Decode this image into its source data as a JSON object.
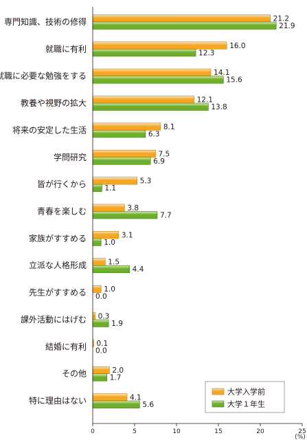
{
  "chart_data": {
    "type": "bar",
    "orientation": "horizontal",
    "categories": [
      "専門知識、技術の修得",
      "就職に有利",
      "就職に必要な勉強をする",
      "教養や視野の拡大",
      "将来の安定した生活",
      "学問研究",
      "皆が行くから",
      "青春を楽しむ",
      "家族がすすめる",
      "立派な人格形成",
      "先生がすすめる",
      "課外活動にはげむ",
      "結婚に有利",
      "その他",
      "特に理由はない"
    ],
    "series": [
      {
        "name": "大学入学前",
        "color": "#f5a623",
        "values": [
          21.2,
          16.0,
          14.1,
          12.1,
          8.1,
          7.5,
          5.3,
          3.8,
          3.1,
          1.5,
          1.0,
          0.3,
          0.1,
          2.0,
          4.1
        ],
        "labels": [
          "21.2",
          "16.0",
          "14.1",
          "12.1",
          "8.1",
          "7.5",
          "5.3",
          "3.8",
          "3.1",
          "1.5",
          "1.0",
          "0.3",
          "0.1",
          "2.0",
          "4.1"
        ]
      },
      {
        "name": "大学１年生",
        "color": "#6fae2c",
        "values": [
          21.9,
          12.3,
          15.6,
          13.8,
          6.3,
          6.9,
          1.1,
          7.7,
          1.0,
          4.4,
          0.0,
          1.9,
          0.0,
          1.7,
          5.6
        ],
        "labels": [
          "21.9",
          "12.3",
          "15.6",
          "13.8",
          "6.3",
          "6.9",
          "1.1",
          "7.7",
          "1.0",
          "4.4",
          "0.0",
          "1.9",
          "0.0",
          "1.7",
          "5.6"
        ]
      }
    ],
    "x_ticks": [
      "0",
      "5",
      "10",
      "15",
      "20",
      "25"
    ],
    "xlim": [
      0,
      25
    ],
    "unit": "(%)",
    "legend_position": "bottom-right",
    "grid": false
  }
}
